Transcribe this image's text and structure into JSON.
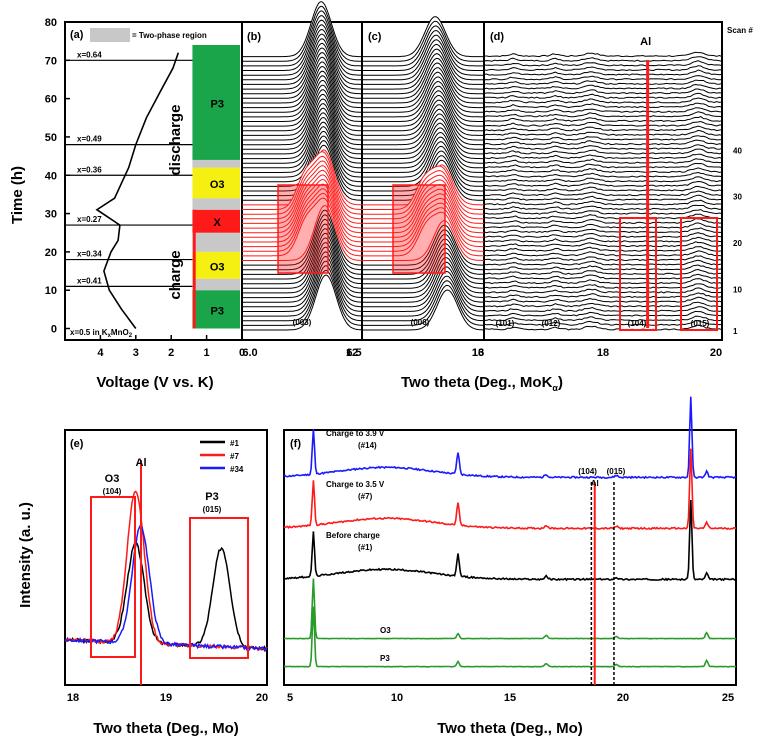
{
  "top_legend": {
    "swatch_color": "#c8c8c8",
    "text": "= Two-phase region"
  },
  "panel_labels": {
    "a": "(a)",
    "b": "(b)",
    "c": "(c)",
    "d": "(d)",
    "e": "(e)",
    "f": "(f)"
  },
  "axes": {
    "top_y_label": "Time (h)",
    "top_x_label_left": "Voltage (V vs. K)",
    "top_x_label_right": "Two theta (Deg., MoK",
    "top_x_label_right_sub": "α",
    "top_x_label_right_end": ")",
    "bottom_y_label": "Intensity (a. u.)",
    "bottom_x_label_e": "Two theta (Deg., Mo)",
    "bottom_x_label_f": "Two theta (Deg., Mo)",
    "scan_label": "Scan #"
  },
  "colors": {
    "phase_green": "#1aa54a",
    "phase_yellow": "#f5ef12",
    "phase_red": "#ff1a1a",
    "phase_gray": "#c8c8c8",
    "blue": "#1a1aff",
    "green_line": "#2a9a2a"
  },
  "chart_data": [
    {
      "type": "line",
      "panel": "(a)",
      "xlim": [
        5,
        0
      ],
      "ylim": [
        -3,
        80
      ],
      "x_ticks": [
        "4",
        "3",
        "2",
        "1",
        "0"
      ],
      "y_ticks": [
        "0",
        "10",
        "20",
        "30",
        "40",
        "50",
        "60",
        "70",
        "80"
      ],
      "voltage_curve": {
        "x": [
          3.0,
          3.4,
          3.75,
          3.9,
          3.7,
          3.5,
          3.45,
          4.1,
          3.6,
          3.4,
          3.2,
          3.0,
          2.7,
          2.3,
          1.95,
          1.8
        ],
        "y": [
          0,
          5,
          10,
          15,
          20,
          23,
          27,
          31,
          34,
          38,
          42,
          48,
          55,
          62,
          68,
          72
        ]
      },
      "x_levels": [
        {
          "label": "x=0.64",
          "time": 70
        },
        {
          "label": "x=0.49",
          "time": 48
        },
        {
          "label": "x=0.36",
          "time": 40
        },
        {
          "label": "x=0.27",
          "time": 27
        },
        {
          "label": "x=0.34",
          "time": 18
        },
        {
          "label": "x=0.41",
          "time": 11
        },
        {
          "label": "x=0.5 in K",
          "time": 0
        }
      ],
      "formula": {
        "pre": "x=0.5 in K",
        "mid": "x",
        "post": "MnO",
        "sub": "2"
      },
      "phases": [
        {
          "label": "P3",
          "from": 0,
          "to": 10,
          "color": "#1aa54a"
        },
        {
          "label": "",
          "from": 10,
          "to": 13,
          "color": "#c8c8c8"
        },
        {
          "label": "O3",
          "from": 13,
          "to": 20,
          "color": "#f5ef12"
        },
        {
          "label": "",
          "from": 20,
          "to": 25,
          "color": "#c8c8c8"
        },
        {
          "label": "X",
          "from": 25,
          "to": 31,
          "color": "#ff1a1a"
        },
        {
          "label": "",
          "from": 31,
          "to": 34,
          "color": "#c8c8c8"
        },
        {
          "label": "O3",
          "from": 34,
          "to": 42,
          "color": "#f5ef12"
        },
        {
          "label": "",
          "from": 42,
          "to": 44,
          "color": "#c8c8c8"
        },
        {
          "label": "P3",
          "from": 44,
          "to": 74,
          "color": "#1aa54a"
        }
      ],
      "side_labels": {
        "charge": "charge",
        "discharge": "discharge"
      }
    },
    {
      "type": "line",
      "panel": "(b)",
      "xlim": [
        6.0,
        6.5
      ],
      "x_ticks": [
        "6.0",
        "6.5"
      ],
      "peak_label": "(003)",
      "n_scans": 60,
      "peak_center": {
        "start": 6.35,
        "end": 6.33
      }
    },
    {
      "type": "line",
      "panel": "(c)",
      "xlim": [
        12,
        13
      ],
      "x_ticks": [
        "12",
        "13"
      ],
      "peak_label": "(006)",
      "n_scans": 60,
      "peak_center": {
        "start": 12.7,
        "end": 12.6
      }
    },
    {
      "type": "line",
      "panel": "(d)",
      "xlim": [
        16,
        20
      ],
      "x_ticks": [
        "16",
        "18",
        "20"
      ],
      "peak_labels": [
        "(101)",
        "(012)",
        "(104)",
        "(015)"
      ],
      "al_label": "Al",
      "al_position": 18.75,
      "scan_ticks": [
        "1",
        "10",
        "20",
        "30",
        "40"
      ],
      "n_scans": 60
    },
    {
      "type": "line",
      "panel": "(e)",
      "xlim": [
        18,
        20
      ],
      "x_ticks": [
        "18",
        "19",
        "20"
      ],
      "legend": [
        "#1",
        "#7",
        "#34"
      ],
      "annotations": {
        "o3": "O3",
        "o3_hkl": "(104)",
        "p3": "P3",
        "p3_hkl": "(015)",
        "al": "Al"
      },
      "series": [
        {
          "name": "#1",
          "color": "#000000",
          "peaks": [
            {
              "x": 18.7,
              "h": 0.55
            },
            {
              "x": 19.55,
              "h": 0.55
            }
          ]
        },
        {
          "name": "#7",
          "color": "#ff1a1a",
          "peaks": [
            {
              "x": 18.7,
              "h": 0.85
            }
          ]
        },
        {
          "name": "#34",
          "color": "#1a1aff",
          "peaks": [
            {
              "x": 18.75,
              "h": 0.65
            }
          ]
        }
      ]
    },
    {
      "type": "line",
      "panel": "(f)",
      "xlim": [
        5,
        25
      ],
      "x_ticks": [
        "5",
        "10",
        "15",
        "20",
        "25"
      ],
      "series": [
        {
          "name": "Charge to 3.9 V",
          "scan": "(#14)",
          "color": "#1a1aff",
          "offset": 0.78
        },
        {
          "name": "Charge to 3.5 V",
          "scan": "(#7)",
          "color": "#ff1a1a",
          "offset": 0.58
        },
        {
          "name": "Before charge",
          "scan": "(#1)",
          "color": "#000000",
          "offset": 0.38
        },
        {
          "name": "O3",
          "scan": "",
          "color": "#2a9a2a",
          "offset": 0.15
        },
        {
          "name": "P3",
          "scan": "",
          "color": "#2a9a2a",
          "offset": 0.04
        }
      ],
      "annotations": {
        "hkl_104": "(104)",
        "hkl_015": "(015)",
        "al": "Al"
      }
    }
  ]
}
